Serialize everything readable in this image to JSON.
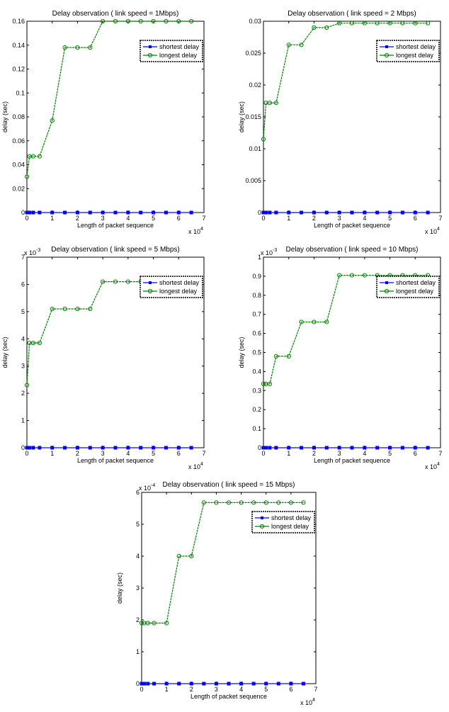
{
  "chart_data": [
    {
      "type": "line",
      "title": "Delay observation ( link speed = 1Mbps)",
      "xlabel": "Length of packet sequence",
      "ylabel": "delay  (sec)",
      "x_multiplier": "x 10",
      "x_multiplier_exp": "4",
      "y_multiplier": "",
      "y_multiplier_exp": "",
      "xlim": [
        0,
        7
      ],
      "ylim": [
        0,
        0.16
      ],
      "xticks": [
        "0",
        "1",
        "2",
        "3",
        "4",
        "5",
        "6",
        "7"
      ],
      "yticks": [
        "0",
        "0.02",
        "0.04",
        "0.06",
        "0.08",
        "0.1",
        "0.12",
        "0.14",
        "0.16"
      ],
      "legend_position": "upper-right",
      "series": [
        {
          "name": "shortest delay",
          "color": "#0000ff",
          "marker": "square",
          "x": [
            0,
            0.1,
            0.25,
            0.5,
            1,
            1.5,
            2,
            2.5,
            3,
            3.5,
            4,
            4.5,
            5,
            5.5,
            6,
            6.5
          ],
          "y": [
            0,
            0,
            0,
            0,
            0,
            0,
            0,
            0,
            0,
            0,
            0,
            0,
            0,
            0,
            0,
            0
          ]
        },
        {
          "name": "longest delay",
          "color": "#008000",
          "marker": "circle",
          "x": [
            0,
            0.1,
            0.25,
            0.5,
            1,
            1.5,
            2,
            2.5,
            3,
            3.5,
            4,
            4.5,
            5,
            5.5,
            6,
            6.5
          ],
          "y": [
            0.03,
            0.047,
            0.047,
            0.047,
            0.077,
            0.138,
            0.138,
            0.138,
            0.16,
            0.16,
            0.16,
            0.16,
            0.16,
            0.16,
            0.16,
            0.16
          ]
        }
      ]
    },
    {
      "type": "line",
      "title": "Delay observation ( link speed = 2 Mbps)",
      "xlabel": "Length of packet sequence",
      "ylabel": "delay  (sec)",
      "x_multiplier": "x 10",
      "x_multiplier_exp": "4",
      "y_multiplier": "",
      "y_multiplier_exp": "",
      "xlim": [
        0,
        7
      ],
      "ylim": [
        0,
        0.03
      ],
      "xticks": [
        "0",
        "1",
        "2",
        "3",
        "4",
        "5",
        "6",
        "7"
      ],
      "yticks": [
        "0",
        "0.005",
        "0.01",
        "0.015",
        "0.02",
        "0.025",
        "0.03"
      ],
      "legend_position": "upper-right",
      "series": [
        {
          "name": "shortest delay",
          "color": "#0000ff",
          "marker": "square",
          "x": [
            0,
            0.1,
            0.25,
            0.5,
            1,
            1.5,
            2,
            2.5,
            3,
            3.5,
            4,
            4.5,
            5,
            5.5,
            6,
            6.5
          ],
          "y": [
            0,
            0,
            0,
            0,
            0,
            0,
            0,
            0,
            0,
            0,
            0,
            0,
            0,
            0,
            0,
            0
          ]
        },
        {
          "name": "longest delay",
          "color": "#008000",
          "marker": "circle",
          "x": [
            0,
            0.1,
            0.25,
            0.5,
            1,
            1.5,
            2,
            2.5,
            3,
            3.5,
            4,
            4.5,
            5,
            5.5,
            6,
            6.5
          ],
          "y": [
            0.0115,
            0.0172,
            0.0172,
            0.0172,
            0.0263,
            0.0263,
            0.029,
            0.029,
            0.0297,
            0.0297,
            0.0297,
            0.0297,
            0.0297,
            0.0297,
            0.0297,
            0.0297
          ]
        }
      ]
    },
    {
      "type": "line",
      "title": "Delay observation ( link speed = 5 Mbps)",
      "xlabel": "Length of packet sequence",
      "ylabel": "delay  (sec)",
      "x_multiplier": "x 10",
      "x_multiplier_exp": "4",
      "y_multiplier": "x 10",
      "y_multiplier_exp": "-3",
      "xlim": [
        0,
        7
      ],
      "ylim": [
        0,
        7
      ],
      "xticks": [
        "0",
        "1",
        "2",
        "3",
        "4",
        "5",
        "6",
        "7"
      ],
      "yticks": [
        "0",
        "1",
        "2",
        "3",
        "4",
        "5",
        "6",
        "7"
      ],
      "legend_position": "upper-right",
      "series": [
        {
          "name": "shortest delay",
          "color": "#0000ff",
          "marker": "square",
          "x": [
            0,
            0.1,
            0.25,
            0.5,
            1,
            1.5,
            2,
            2.5,
            3,
            3.5,
            4,
            4.5,
            5,
            5.5,
            6,
            6.5
          ],
          "y": [
            0,
            0,
            0,
            0,
            0,
            0,
            0,
            0,
            0,
            0,
            0,
            0,
            0,
            0,
            0,
            0
          ]
        },
        {
          "name": "longest delay",
          "color": "#008000",
          "marker": "circle",
          "x": [
            0,
            0.1,
            0.25,
            0.5,
            1,
            1.5,
            2,
            2.5,
            3,
            3.5,
            4,
            4.5,
            5,
            5.5,
            6,
            6.5
          ],
          "y": [
            2.3,
            3.85,
            3.85,
            3.85,
            5.1,
            5.1,
            5.1,
            5.1,
            6.1,
            6.1,
            6.1,
            6.1,
            6.1,
            6.1,
            6.1,
            6.1
          ]
        }
      ]
    },
    {
      "type": "line",
      "title": "Delay observation ( link speed = 10 Mbps)",
      "xlabel": "Length of packet sequence",
      "ylabel": "delay  (sec)",
      "x_multiplier": "x 10",
      "x_multiplier_exp": "4",
      "y_multiplier": "x 10",
      "y_multiplier_exp": "-3",
      "xlim": [
        0,
        7
      ],
      "ylim": [
        0,
        1
      ],
      "xticks": [
        "0",
        "1",
        "2",
        "3",
        "4",
        "5",
        "6",
        "7"
      ],
      "yticks": [
        "0",
        "0.1",
        "0.2",
        "0.3",
        "0.4",
        "0.5",
        "0.6",
        "0.7",
        "0.8",
        "0.9",
        "1"
      ],
      "legend_position": "upper-right",
      "series": [
        {
          "name": "shortest delay",
          "color": "#0000ff",
          "marker": "square",
          "x": [
            0,
            0.1,
            0.25,
            0.5,
            1,
            1.5,
            2,
            2.5,
            3,
            3.5,
            4,
            4.5,
            5,
            5.5,
            6,
            6.5
          ],
          "y": [
            0,
            0,
            0,
            0,
            0,
            0,
            0,
            0,
            0,
            0,
            0,
            0,
            0,
            0,
            0,
            0
          ]
        },
        {
          "name": "longest delay",
          "color": "#008000",
          "marker": "circle",
          "x": [
            0,
            0.1,
            0.25,
            0.5,
            1,
            1.5,
            2,
            2.5,
            3,
            3.5,
            4,
            4.5,
            5,
            5.5,
            6,
            6.5
          ],
          "y": [
            0.335,
            0.335,
            0.335,
            0.48,
            0.48,
            0.66,
            0.66,
            0.66,
            0.905,
            0.905,
            0.905,
            0.905,
            0.905,
            0.905,
            0.905,
            0.905
          ]
        }
      ]
    },
    {
      "type": "line",
      "title": "Delay observation ( link speed = 15 Mbps)",
      "xlabel": "Length of packet sequence",
      "ylabel": "delay  (sec)",
      "x_multiplier": "x 10",
      "x_multiplier_exp": "4",
      "y_multiplier": "x 10",
      "y_multiplier_exp": "-4",
      "xlim": [
        0,
        7
      ],
      "ylim": [
        0,
        6
      ],
      "xticks": [
        "0",
        "1",
        "2",
        "3",
        "4",
        "5",
        "6",
        "7"
      ],
      "yticks": [
        "0",
        "1",
        "2",
        "3",
        "4",
        "5",
        "6"
      ],
      "legend_position": "upper-right",
      "series": [
        {
          "name": "shortest delay",
          "color": "#0000ff",
          "marker": "square",
          "x": [
            0,
            0.1,
            0.25,
            0.5,
            1,
            1.5,
            2,
            2.5,
            3,
            3.5,
            4,
            4.5,
            5,
            5.5,
            6,
            6.5
          ],
          "y": [
            0,
            0,
            0,
            0,
            0,
            0,
            0,
            0,
            0,
            0,
            0,
            0,
            0,
            0,
            0,
            0
          ]
        },
        {
          "name": "longest delay",
          "color": "#008000",
          "marker": "circle",
          "x": [
            0,
            0.1,
            0.25,
            0.5,
            1,
            1.5,
            2,
            2.5,
            3,
            3.5,
            4,
            4.5,
            5,
            5.5,
            6,
            6.5
          ],
          "y": [
            1.9,
            1.9,
            1.9,
            1.9,
            1.9,
            4.0,
            4.0,
            5.68,
            5.68,
            5.68,
            5.68,
            5.68,
            5.68,
            5.68,
            5.68,
            5.68
          ]
        }
      ]
    }
  ]
}
